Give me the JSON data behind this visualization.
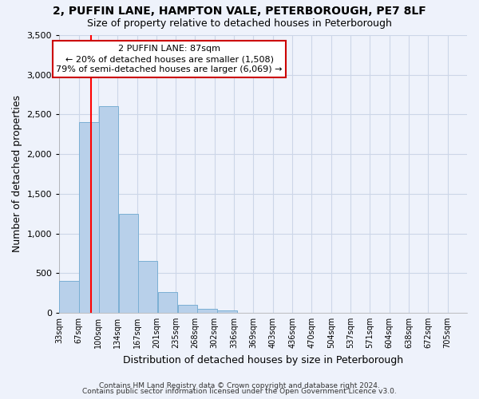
{
  "title": "2, PUFFIN LANE, HAMPTON VALE, PETERBOROUGH, PE7 8LF",
  "subtitle": "Size of property relative to detached houses in Peterborough",
  "xlabel": "Distribution of detached houses by size in Peterborough",
  "ylabel": "Number of detached properties",
  "bar_left_edges": [
    33,
    67,
    100,
    134,
    167,
    201,
    235,
    268,
    302,
    336,
    369,
    403,
    436,
    470,
    504,
    537,
    571,
    604,
    638,
    672
  ],
  "bar_heights": [
    400,
    2400,
    2600,
    1250,
    650,
    260,
    100,
    50,
    30,
    0,
    0,
    0,
    0,
    0,
    0,
    0,
    0,
    0,
    0,
    0
  ],
  "bin_width": 33,
  "bar_color": "#b8d0ea",
  "bar_edge_color": "#7bafd4",
  "x_tick_labels": [
    "33sqm",
    "67sqm",
    "100sqm",
    "134sqm",
    "167sqm",
    "201sqm",
    "235sqm",
    "268sqm",
    "302sqm",
    "336sqm",
    "369sqm",
    "403sqm",
    "436sqm",
    "470sqm",
    "504sqm",
    "537sqm",
    "571sqm",
    "604sqm",
    "638sqm",
    "672sqm",
    "705sqm"
  ],
  "ylim": [
    0,
    3500
  ],
  "yticks": [
    0,
    500,
    1000,
    1500,
    2000,
    2500,
    3000,
    3500
  ],
  "red_line_x": 87,
  "annotation_title": "2 PUFFIN LANE: 87sqm",
  "annotation_line1": "← 20% of detached houses are smaller (1,508)",
  "annotation_line2": "79% of semi-detached houses are larger (6,069) →",
  "annotation_box_color": "#ffffff",
  "annotation_box_edgecolor": "#cc0000",
  "grid_color": "#ccd6e8",
  "background_color": "#eef2fb",
  "footer_line1": "Contains HM Land Registry data © Crown copyright and database right 2024.",
  "footer_line2": "Contains public sector information licensed under the Open Government Licence v3.0."
}
